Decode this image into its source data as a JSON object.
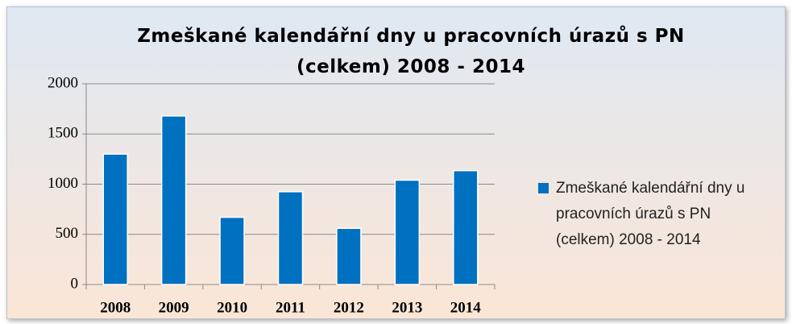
{
  "chart_data": {
    "type": "bar",
    "title": "Zmeškané kalendářní dny u pracovních úrazů s PN (celkem) 2008 - 2014",
    "categories": [
      "2008",
      "2009",
      "2010",
      "2011",
      "2012",
      "2013",
      "2014"
    ],
    "series": [
      {
        "name": "Zmeškané kalendářní dny u pracovních úrazů s PN (celkem) 2008 - 2014",
        "color": "#0070c0",
        "values": [
          1300,
          1680,
          670,
          925,
          560,
          1040,
          1135
        ]
      }
    ],
    "ylim": [
      0,
      2000
    ],
    "yticks": [
      0,
      500,
      1000,
      1500,
      2000
    ],
    "grid": true,
    "legend": "right"
  }
}
